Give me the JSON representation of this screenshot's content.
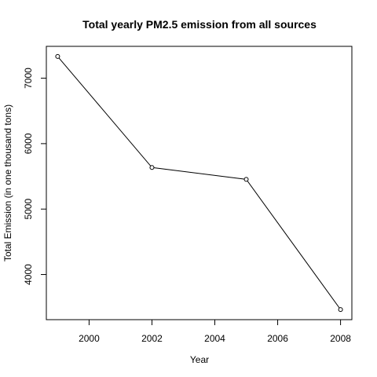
{
  "chart_data": {
    "type": "line",
    "title": "Total yearly PM2.5 emission from all sources",
    "xlabel": "Year",
    "ylabel": "Total Emission (in one thousand tons)",
    "x": [
      1999,
      2002,
      2005,
      2008
    ],
    "series": [
      {
        "values": [
          7332,
          5635,
          5454,
          3465
        ]
      }
    ],
    "xlim": [
      1999,
      2008
    ],
    "ylim": [
      3465,
      7332
    ],
    "xticks": [
      2000,
      2002,
      2004,
      2006,
      2008
    ],
    "yticks": [
      4000,
      5000,
      6000,
      7000
    ],
    "xtick_labels": [
      "2000",
      "2002",
      "2004",
      "2006",
      "2008"
    ],
    "ytick_labels": [
      "4000",
      "5000",
      "6000",
      "7000"
    ],
    "marker": "open-circle",
    "grid": false,
    "legend": "none",
    "colors": {
      "line": "#000000",
      "marker": "#000000",
      "axes": "#000000",
      "background": "#ffffff"
    }
  }
}
